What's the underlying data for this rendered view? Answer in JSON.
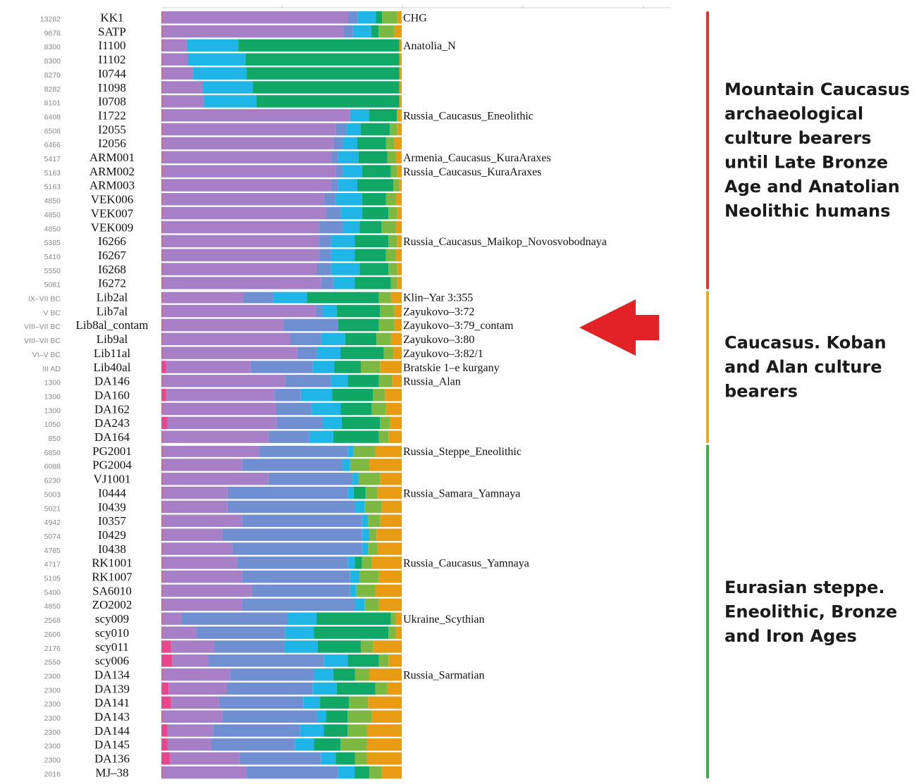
{
  "chart_data": {
    "type": "bar",
    "stacked": true,
    "orientation": "horizontal",
    "x_range": [
      0,
      1
    ],
    "component_colors": [
      "#e8478f",
      "#a77fc6",
      "#6f8fd1",
      "#1fb5e6",
      "#11a867",
      "#7db843",
      "#e79c14"
    ],
    "rows": [
      {
        "date": "13282",
        "sample": "KK1",
        "population": "CHG",
        "values": [
          0.005,
          0.755,
          0.04,
          0.075,
          0.025,
          0.06,
          0.02
        ]
      },
      {
        "date": "9678",
        "sample": "SATP",
        "population": "",
        "values": [
          0.005,
          0.74,
          0.04,
          0.075,
          0.03,
          0.065,
          0.03
        ]
      },
      {
        "date": "8300",
        "sample": "I1100",
        "population": "Anatolia_N",
        "values": [
          0.005,
          0.1,
          0.0,
          0.215,
          0.67,
          0.0,
          0.01
        ]
      },
      {
        "date": "8300",
        "sample": "I1102",
        "population": "",
        "values": [
          0.005,
          0.105,
          0.0,
          0.24,
          0.64,
          0.0,
          0.01
        ]
      },
      {
        "date": "8270",
        "sample": "I0744",
        "population": "",
        "values": [
          0.005,
          0.125,
          0.0,
          0.225,
          0.635,
          0.0,
          0.01
        ]
      },
      {
        "date": "8282",
        "sample": "I1098",
        "population": "",
        "values": [
          0.005,
          0.165,
          0.0,
          0.21,
          0.61,
          0.0,
          0.01
        ]
      },
      {
        "date": "8101",
        "sample": "I0708",
        "population": "",
        "values": [
          0.005,
          0.17,
          0.0,
          0.22,
          0.595,
          0.0,
          0.01
        ]
      },
      {
        "date": "6408",
        "sample": "I1722",
        "population": "Russia_Caucasus_Eneolithic",
        "values": [
          0.005,
          0.78,
          0.0,
          0.08,
          0.115,
          0.0,
          0.02
        ]
      },
      {
        "date": "6508",
        "sample": "I2055",
        "population": "",
        "values": [
          0.005,
          0.72,
          0.045,
          0.06,
          0.12,
          0.03,
          0.02
        ]
      },
      {
        "date": "6466",
        "sample": "I2056",
        "population": "",
        "values": [
          0.005,
          0.71,
          0.04,
          0.06,
          0.12,
          0.035,
          0.03
        ]
      },
      {
        "date": "5417",
        "sample": "ARM001",
        "population": "Armenia_Caucasus_KuraAraxes",
        "values": [
          0.005,
          0.7,
          0.03,
          0.085,
          0.12,
          0.035,
          0.025
        ]
      },
      {
        "date": "5163",
        "sample": "ARM002",
        "population": "Russia_Caucasus_KuraAraxes",
        "values": [
          0.005,
          0.72,
          0.03,
          0.08,
          0.12,
          0.025,
          0.02
        ]
      },
      {
        "date": "5163",
        "sample": "ARM003",
        "population": "",
        "values": [
          0.005,
          0.7,
          0.03,
          0.08,
          0.15,
          0.025,
          0.01
        ]
      },
      {
        "date": "4850",
        "sample": "VEK006",
        "population": "",
        "values": [
          0.005,
          0.67,
          0.05,
          0.11,
          0.1,
          0.04,
          0.025
        ]
      },
      {
        "date": "4850",
        "sample": "VEK007",
        "population": "",
        "values": [
          0.005,
          0.68,
          0.06,
          0.09,
          0.11,
          0.035,
          0.02
        ]
      },
      {
        "date": "4850",
        "sample": "VEK009",
        "population": "",
        "values": [
          0.005,
          0.65,
          0.1,
          0.07,
          0.09,
          0.06,
          0.025
        ]
      },
      {
        "date": "5385",
        "sample": "I6266",
        "population": "Russia_Caucasus_Maikop_Novosvobodnaya",
        "values": [
          0.005,
          0.65,
          0.05,
          0.1,
          0.14,
          0.035,
          0.02
        ]
      },
      {
        "date": "5410",
        "sample": "I6267",
        "population": "",
        "values": [
          0.005,
          0.65,
          0.05,
          0.1,
          0.13,
          0.04,
          0.025
        ]
      },
      {
        "date": "5550",
        "sample": "I6268",
        "population": "",
        "values": [
          0.005,
          0.64,
          0.06,
          0.12,
          0.12,
          0.035,
          0.02
        ]
      },
      {
        "date": "5081",
        "sample": "I6272",
        "population": "",
        "values": [
          0.005,
          0.66,
          0.05,
          0.09,
          0.15,
          0.025,
          0.02
        ]
      },
      {
        "date": "IX–VII BC",
        "sample": "Lib2al",
        "population": "Klin–Yar 3:355",
        "values": [
          0.005,
          0.335,
          0.125,
          0.14,
          0.3,
          0.05,
          0.045
        ]
      },
      {
        "date": "V BC",
        "sample": "Lib7al",
        "population": "Zayukovo–3:72",
        "values": [
          0.005,
          0.635,
          0.03,
          0.06,
          0.18,
          0.06,
          0.03
        ]
      },
      {
        "date": "VIII–VII BC",
        "sample": "Lib8al_contam",
        "population": "Zayukovo–3:79_contam",
        "values": [
          0.005,
          0.5,
          0.23,
          0.0,
          0.17,
          0.065,
          0.03
        ]
      },
      {
        "date": "VIII–VII BC",
        "sample": "Lib9al",
        "population": "Zayukovo–3:80",
        "values": [
          0.005,
          0.53,
          0.13,
          0.1,
          0.13,
          0.06,
          0.045
        ]
      },
      {
        "date": "VI–V BC",
        "sample": "Lib11al",
        "population": "Zayukovo–3:82/1",
        "values": [
          0.005,
          0.56,
          0.08,
          0.1,
          0.18,
          0.04,
          0.035
        ]
      },
      {
        "date": "III AD",
        "sample": "Lib40al",
        "population": "Bratskie 1–e kurgany",
        "values": [
          0.02,
          0.35,
          0.26,
          0.09,
          0.11,
          0.08,
          0.09
        ]
      },
      {
        "date": "1300",
        "sample": "DA146",
        "population": "Russia_Alan",
        "values": [
          0.005,
          0.51,
          0.19,
          0.07,
          0.13,
          0.055,
          0.04
        ]
      },
      {
        "date": "1300",
        "sample": "DA160",
        "population": "",
        "values": [
          0.02,
          0.45,
          0.11,
          0.13,
          0.17,
          0.05,
          0.07
        ]
      },
      {
        "date": "1300",
        "sample": "DA162",
        "population": "",
        "values": [
          0.005,
          0.47,
          0.15,
          0.12,
          0.13,
          0.06,
          0.065
        ]
      },
      {
        "date": "1050",
        "sample": "DA243",
        "population": "",
        "values": [
          0.025,
          0.455,
          0.19,
          0.08,
          0.16,
          0.04,
          0.05
        ]
      },
      {
        "date": "850",
        "sample": "DA164",
        "population": "",
        "values": [
          0.005,
          0.44,
          0.17,
          0.1,
          0.19,
          0.04,
          0.055
        ]
      },
      {
        "date": "6850",
        "sample": "PG2001",
        "population": "Russia_Steppe_Eneolithic",
        "values": [
          0.005,
          0.4,
          0.37,
          0.025,
          0.0,
          0.09,
          0.11
        ]
      },
      {
        "date": "6088",
        "sample": "PG2004",
        "population": "",
        "values": [
          0.005,
          0.33,
          0.42,
          0.03,
          0.0,
          0.08,
          0.135
        ]
      },
      {
        "date": "6230",
        "sample": "VJ1001",
        "population": "",
        "values": [
          0.005,
          0.44,
          0.35,
          0.025,
          0.0,
          0.09,
          0.09
        ]
      },
      {
        "date": "5003",
        "sample": "I0444",
        "population": "Russia_Samara_Yamnaya",
        "values": [
          0.005,
          0.27,
          0.5,
          0.025,
          0.05,
          0.05,
          0.1
        ]
      },
      {
        "date": "5021",
        "sample": "I0439",
        "population": "",
        "values": [
          0.005,
          0.27,
          0.53,
          0.04,
          0.0,
          0.07,
          0.085
        ]
      },
      {
        "date": "4942",
        "sample": "I0357",
        "population": "",
        "values": [
          0.005,
          0.33,
          0.5,
          0.025,
          0.0,
          0.05,
          0.09
        ]
      },
      {
        "date": "5074",
        "sample": "I0429",
        "population": "",
        "values": [
          0.005,
          0.25,
          0.58,
          0.03,
          0.0,
          0.03,
          0.105
        ]
      },
      {
        "date": "4785",
        "sample": "I0438",
        "population": "",
        "values": [
          0.005,
          0.29,
          0.54,
          0.025,
          0.0,
          0.04,
          0.1
        ]
      },
      {
        "date": "4717",
        "sample": "RK1001",
        "population": "Russia_Caucasus_Yamnaya",
        "values": [
          0.005,
          0.31,
          0.46,
          0.03,
          0.03,
          0.04,
          0.125
        ]
      },
      {
        "date": "5105",
        "sample": "RK1007",
        "population": "",
        "values": [
          0.005,
          0.33,
          0.45,
          0.04,
          0.0,
          0.08,
          0.095
        ]
      },
      {
        "date": "5400",
        "sample": "SA6010",
        "population": "",
        "values": [
          0.005,
          0.37,
          0.41,
          0.025,
          0.0,
          0.08,
          0.11
        ]
      },
      {
        "date": "4850",
        "sample": "ZO2002",
        "population": "",
        "values": [
          0.005,
          0.33,
          0.47,
          0.04,
          0.0,
          0.06,
          0.095
        ]
      },
      {
        "date": "2568",
        "sample": "scy009",
        "population": "Ukraine_Scythian",
        "values": [
          0.005,
          0.08,
          0.44,
          0.12,
          0.31,
          0.02,
          0.025
        ]
      },
      {
        "date": "2606",
        "sample": "scy010",
        "population": "",
        "values": [
          0.005,
          0.14,
          0.37,
          0.12,
          0.31,
          0.03,
          0.025
        ]
      },
      {
        "date": "2176",
        "sample": "scy011",
        "population": "",
        "values": [
          0.04,
          0.18,
          0.29,
          0.14,
          0.18,
          0.05,
          0.12
        ]
      },
      {
        "date": "2550",
        "sample": "scy006",
        "population": "",
        "values": [
          0.045,
          0.15,
          0.48,
          0.1,
          0.13,
          0.04,
          0.055
        ]
      },
      {
        "date": "2300",
        "sample": "DA134",
        "population": "Russia_Sarmatian",
        "values": [
          0.005,
          0.28,
          0.35,
          0.08,
          0.09,
          0.06,
          0.135
        ]
      },
      {
        "date": "2300",
        "sample": "DA139",
        "population": "",
        "values": [
          0.03,
          0.24,
          0.36,
          0.1,
          0.16,
          0.05,
          0.06
        ]
      },
      {
        "date": "2300",
        "sample": "DA141",
        "population": "",
        "values": [
          0.04,
          0.2,
          0.35,
          0.07,
          0.12,
          0.08,
          0.14
        ]
      },
      {
        "date": "2300",
        "sample": "DA143",
        "population": "",
        "values": [
          0.005,
          0.25,
          0.39,
          0.04,
          0.09,
          0.1,
          0.125
        ]
      },
      {
        "date": "2300",
        "sample": "DA144",
        "population": "",
        "values": [
          0.025,
          0.19,
          0.36,
          0.1,
          0.1,
          0.08,
          0.145
        ]
      },
      {
        "date": "2300",
        "sample": "DA145",
        "population": "",
        "values": [
          0.025,
          0.18,
          0.35,
          0.08,
          0.11,
          0.11,
          0.145
        ]
      },
      {
        "date": "2300",
        "sample": "DA136",
        "population": "",
        "values": [
          0.035,
          0.29,
          0.34,
          0.06,
          0.08,
          0.05,
          0.145
        ]
      },
      {
        "date": "2016",
        "sample": "MJ–38",
        "population": "",
        "values": [
          0.005,
          0.35,
          0.38,
          0.07,
          0.06,
          0.05,
          0.085
        ]
      }
    ],
    "groups": [
      {
        "label": "Mountain Caucasus archaeological culture bearers until Late Bronze Age and Anatolian Neolithic humans",
        "color": "#e8312b",
        "first_row": 0,
        "last_row": 19
      },
      {
        "label": "Caucasus. Koban and Alan culture bearers",
        "color": "#f2a51f",
        "first_row": 20,
        "last_row": 30
      },
      {
        "label": "Eurasian steppe. Eneolithic, Bronze and Iron Ages",
        "color": "#3fae49",
        "first_row": 31,
        "last_row": 54
      }
    ],
    "arrow_target_row": 22,
    "arrow_color": "#e0161b"
  }
}
